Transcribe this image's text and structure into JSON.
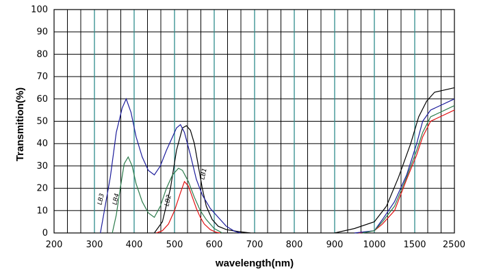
{
  "chart_data": {
    "type": "line",
    "ylabel": "Transmition(%)",
    "xlabel": "wavelength(nm)",
    "ylim": [
      0,
      100
    ],
    "y_ticks": [
      "0",
      "10",
      "20",
      "30",
      "40",
      "50",
      "60",
      "70",
      "80",
      "90",
      "100"
    ],
    "x_tick_labels": [
      {
        "label": "200",
        "x": 200
      },
      {
        "label": "300",
        "x": 300
      },
      {
        "label": "400",
        "x": 400
      },
      {
        "label": "500",
        "x": 500
      },
      {
        "label": "600",
        "x": 600
      },
      {
        "label": "700",
        "x": 700
      },
      {
        "label": "800",
        "x": 800
      },
      {
        "label": "900",
        "x": 900
      },
      {
        "label": "1000",
        "x": 1000
      },
      {
        "label": "1500",
        "x": 1500
      },
      {
        "label": "2500",
        "x": 2500
      }
    ],
    "grid": true,
    "colors": {
      "grid_black": "#000000",
      "grid_teal": "#2e8b8b",
      "LB1": "#000000",
      "LB2": "#e01010",
      "LB3": "#1a1a9a",
      "LB4": "#2a7a4a"
    },
    "series": [
      {
        "name": "LB1",
        "color": "#000000",
        "points": [
          [
            450,
            0
          ],
          [
            470,
            5
          ],
          [
            490,
            20
          ],
          [
            505,
            37
          ],
          [
            520,
            47
          ],
          [
            530,
            48
          ],
          [
            540,
            46
          ],
          [
            550,
            40
          ],
          [
            560,
            30
          ],
          [
            570,
            20
          ],
          [
            580,
            12
          ],
          [
            595,
            6
          ],
          [
            610,
            3
          ],
          [
            630,
            1.5
          ],
          [
            660,
            0.6
          ],
          [
            690,
            0
          ],
          [
            900,
            0
          ],
          [
            950,
            2
          ],
          [
            1000,
            5
          ],
          [
            1150,
            12
          ],
          [
            1300,
            25
          ],
          [
            1450,
            40
          ],
          [
            1600,
            52
          ],
          [
            1800,
            59
          ],
          [
            2000,
            63
          ],
          [
            2500,
            65
          ]
        ]
      },
      {
        "name": "LB2",
        "color": "#e01010",
        "points": [
          [
            455,
            0
          ],
          [
            470,
            1
          ],
          [
            485,
            4
          ],
          [
            500,
            10
          ],
          [
            515,
            18
          ],
          [
            525,
            23
          ],
          [
            535,
            21
          ],
          [
            545,
            16
          ],
          [
            555,
            11
          ],
          [
            565,
            7
          ],
          [
            575,
            4
          ],
          [
            590,
            1.5
          ],
          [
            605,
            0.3
          ],
          [
            615,
            0
          ],
          [
            960,
            0
          ],
          [
            1000,
            1
          ],
          [
            1100,
            4
          ],
          [
            1250,
            10
          ],
          [
            1400,
            24
          ],
          [
            1550,
            35
          ],
          [
            1700,
            43
          ],
          [
            1900,
            50
          ],
          [
            2500,
            55
          ]
        ]
      },
      {
        "name": "LB3",
        "color": "#1a1a9a",
        "points": [
          [
            315,
            0
          ],
          [
            325,
            10
          ],
          [
            340,
            25
          ],
          [
            355,
            45
          ],
          [
            370,
            56
          ],
          [
            380,
            60
          ],
          [
            392,
            54
          ],
          [
            405,
            43
          ],
          [
            420,
            34
          ],
          [
            435,
            28
          ],
          [
            450,
            26
          ],
          [
            465,
            30
          ],
          [
            480,
            37
          ],
          [
            495,
            43
          ],
          [
            505,
            47
          ],
          [
            515,
            48.5
          ],
          [
            525,
            45
          ],
          [
            540,
            35
          ],
          [
            555,
            24
          ],
          [
            570,
            17
          ],
          [
            590,
            11
          ],
          [
            610,
            7
          ],
          [
            630,
            3
          ],
          [
            650,
            0.8
          ],
          [
            665,
            0
          ],
          [
            950,
            0
          ],
          [
            1000,
            1
          ],
          [
            1100,
            6
          ],
          [
            1250,
            14
          ],
          [
            1400,
            26
          ],
          [
            1550,
            40
          ],
          [
            1700,
            50
          ],
          [
            1900,
            55
          ],
          [
            2500,
            60
          ]
        ]
      },
      {
        "name": "LB4",
        "color": "#2a7a4a",
        "points": [
          [
            345,
            0
          ],
          [
            355,
            8
          ],
          [
            365,
            20
          ],
          [
            375,
            31
          ],
          [
            385,
            34
          ],
          [
            395,
            30
          ],
          [
            405,
            22
          ],
          [
            420,
            14
          ],
          [
            435,
            9
          ],
          [
            450,
            7
          ],
          [
            465,
            12
          ],
          [
            480,
            20
          ],
          [
            495,
            26
          ],
          [
            510,
            29
          ],
          [
            520,
            28
          ],
          [
            535,
            23
          ],
          [
            550,
            16
          ],
          [
            565,
            10
          ],
          [
            580,
            6
          ],
          [
            600,
            2
          ],
          [
            620,
            0
          ],
          [
            970,
            0
          ],
          [
            1000,
            1
          ],
          [
            1100,
            5
          ],
          [
            1250,
            12
          ],
          [
            1400,
            25
          ],
          [
            1550,
            37
          ],
          [
            1700,
            45
          ],
          [
            1900,
            52
          ],
          [
            2500,
            57
          ]
        ]
      }
    ]
  }
}
